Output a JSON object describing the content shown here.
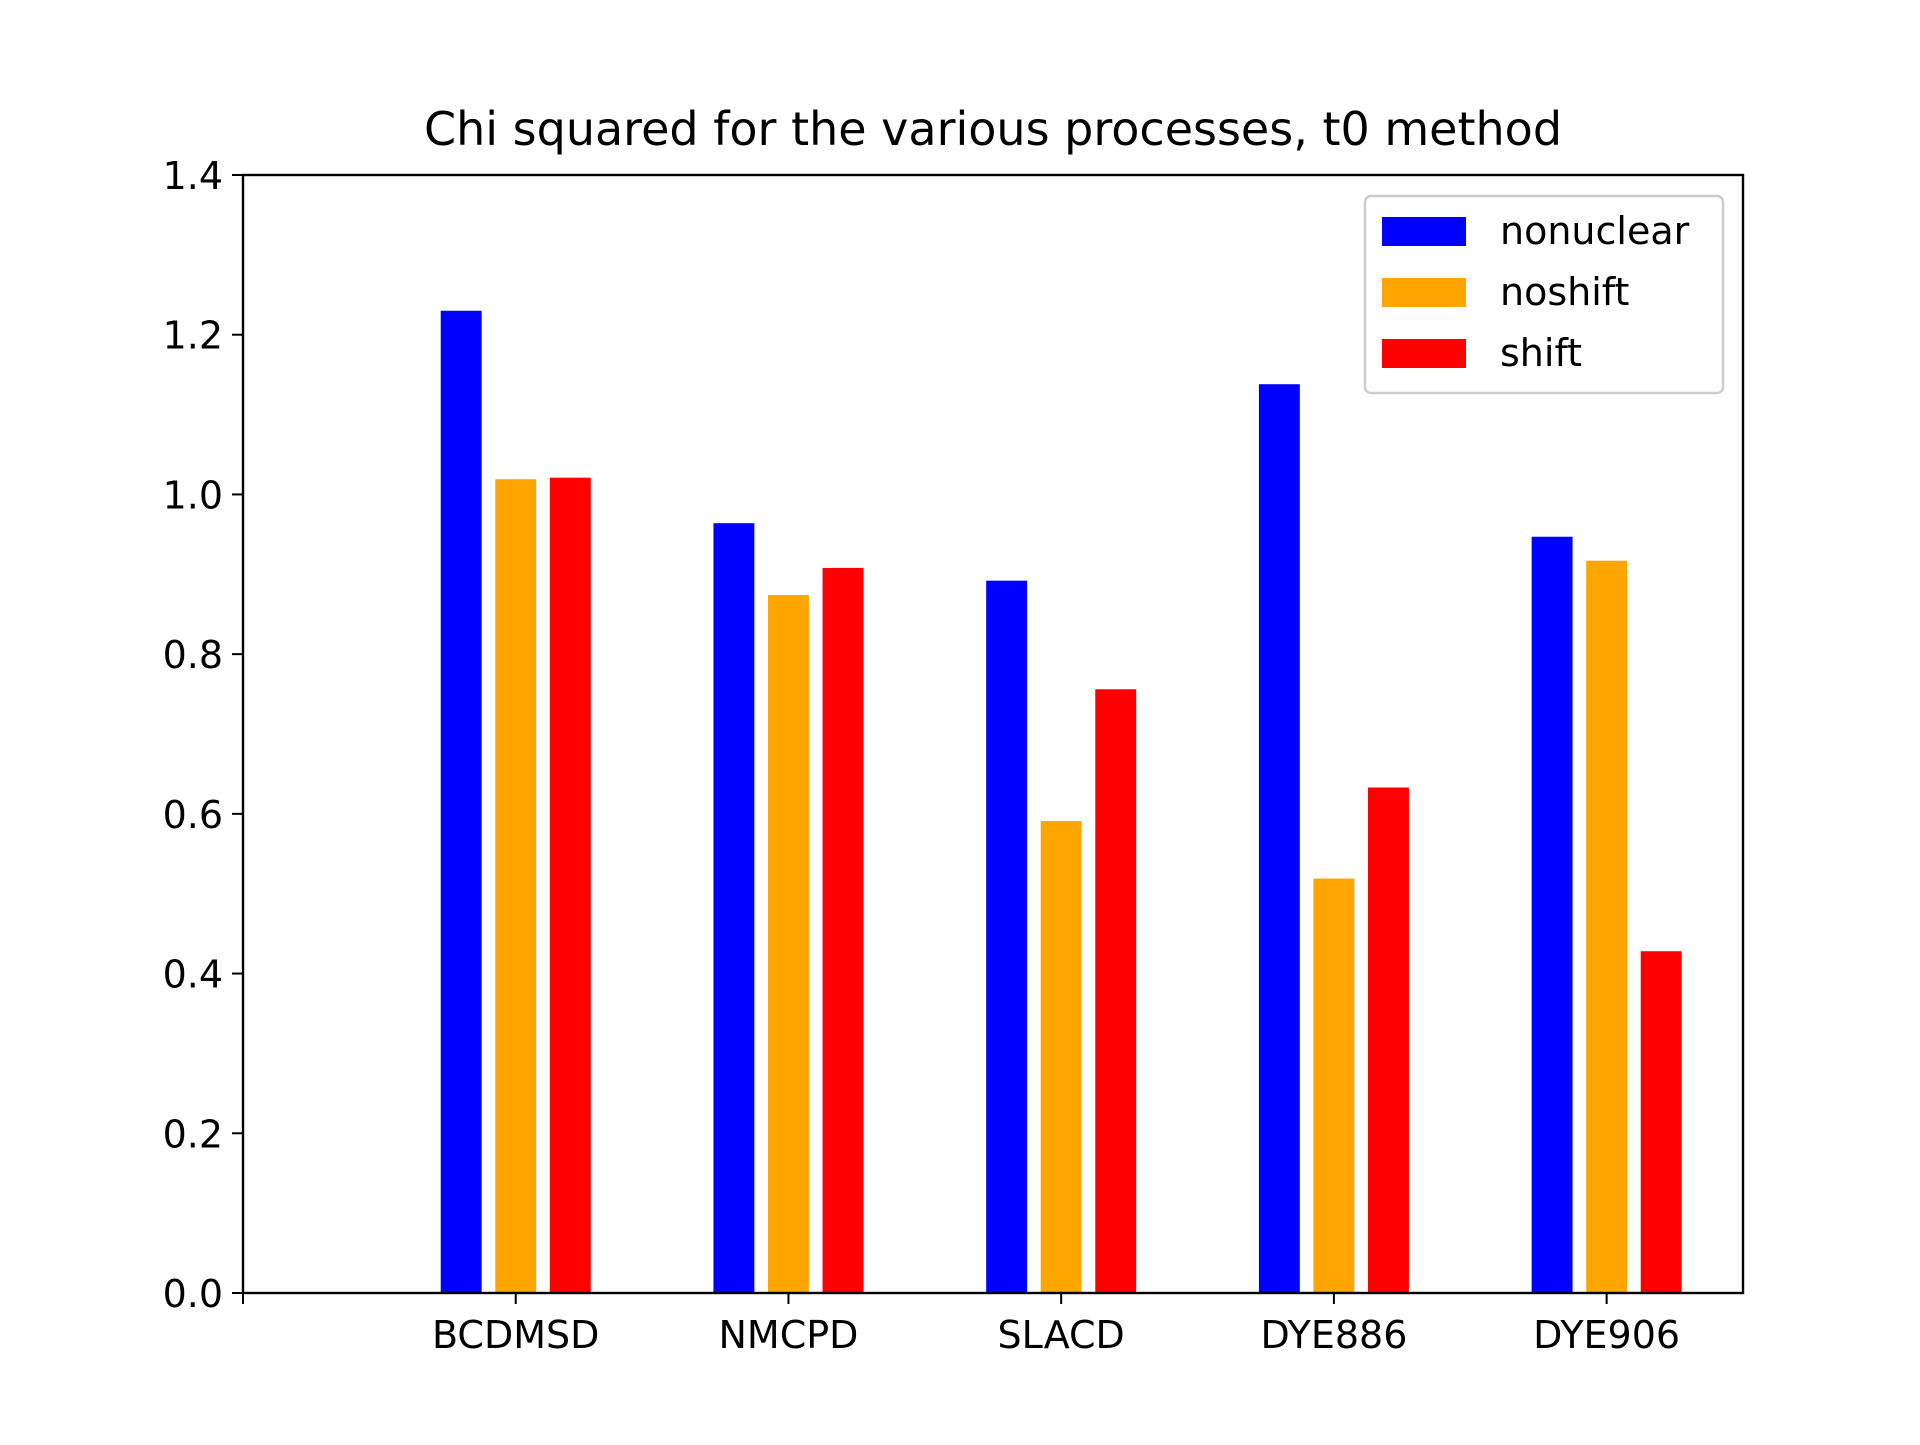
{
  "chart_data": {
    "type": "bar",
    "title": "Chi squared for the various processes, t0 method",
    "xlabel": "",
    "ylabel": "",
    "categories": [
      "BCDMSD",
      "NMCPD",
      "SLACD",
      "DYE886",
      "DYE906"
    ],
    "series": [
      {
        "name": "nonuclear",
        "color": "#0000ff",
        "values": [
          1.23,
          0.964,
          0.892,
          1.138,
          0.947
        ]
      },
      {
        "name": "noshift",
        "color": "#ffa500",
        "values": [
          1.019,
          0.874,
          0.591,
          0.519,
          0.917
        ]
      },
      {
        "name": "shift",
        "color": "#ff0000",
        "values": [
          1.021,
          0.908,
          0.756,
          0.633,
          0.428
        ]
      }
    ],
    "ylim": [
      0,
      1.4
    ],
    "yticks": [
      0.0,
      0.2,
      0.4,
      0.6,
      0.8,
      1.0,
      1.2,
      1.4
    ],
    "ytick_labels": [
      "0.0",
      "0.2",
      "0.4",
      "0.6",
      "0.8",
      "1.0",
      "1.2",
      "1.4"
    ],
    "grid": false,
    "legend_position": "top-right"
  }
}
